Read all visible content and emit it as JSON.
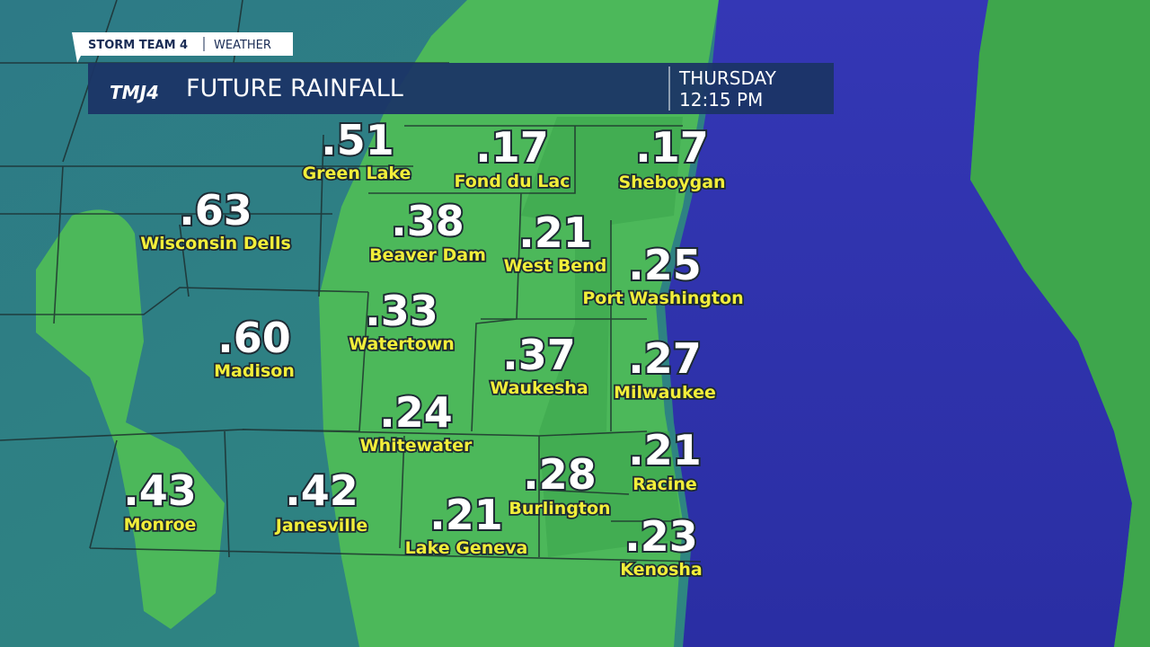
{
  "header": {
    "brand": "STORM TEAM 4",
    "section": "WEATHER",
    "logo": "TMJ4",
    "title": "FUTURE RAINFALL",
    "day": "THURSDAY",
    "time": "12:15 PM"
  },
  "cities": [
    {
      "value": ".51",
      "name": "Green Lake"
    },
    {
      "value": ".17",
      "name": "Fond du Lac"
    },
    {
      "value": ".17",
      "name": "Sheboygan"
    },
    {
      "value": ".63",
      "name": "Wisconsin Dells"
    },
    {
      "value": ".38",
      "name": "Beaver Dam"
    },
    {
      "value": ".21",
      "name": "West Bend"
    },
    {
      "value": ".25",
      "name": "Port Washington"
    },
    {
      "value": ".33",
      "name": "Watertown"
    },
    {
      "value": ".60",
      "name": "Madison"
    },
    {
      "value": ".37",
      "name": "Waukesha"
    },
    {
      "value": ".27",
      "name": "Milwaukee"
    },
    {
      "value": ".24",
      "name": "Whitewater"
    },
    {
      "value": ".21",
      "name": "Racine"
    },
    {
      "value": ".28",
      "name": "Burlington"
    },
    {
      "value": ".43",
      "name": "Monroe"
    },
    {
      "value": ".42",
      "name": "Janesville"
    },
    {
      "value": ".21",
      "name": "Lake Geneva"
    },
    {
      "value": ".23",
      "name": "Kenosha"
    }
  ]
}
